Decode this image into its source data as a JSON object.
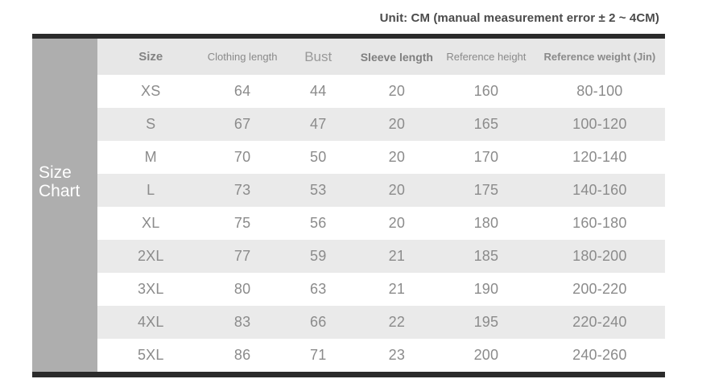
{
  "page": {
    "unit_note": "Unit: CM (manual measurement error ± 2 ~ 4CM)"
  },
  "sidebar": {
    "label_line1": "Size",
    "label_line2": "Chart"
  },
  "chart_data": {
    "type": "table",
    "title": "Unit: CM (manual measurement error ± 2 ~ 4CM)",
    "columns": [
      "Size",
      "Clothing length",
      "Bust",
      "Sleeve length",
      "Reference height",
      "Reference weight (Jin)"
    ],
    "rows": [
      [
        "XS",
        "64",
        "44",
        "20",
        "160",
        "80-100"
      ],
      [
        "S",
        "67",
        "47",
        "20",
        "165",
        "100-120"
      ],
      [
        "M",
        "70",
        "50",
        "20",
        "170",
        "120-140"
      ],
      [
        "L",
        "73",
        "53",
        "20",
        "175",
        "140-160"
      ],
      [
        "XL",
        "75",
        "56",
        "20",
        "180",
        "160-180"
      ],
      [
        "2XL",
        "77",
        "59",
        "21",
        "185",
        "180-200"
      ],
      [
        "3XL",
        "80",
        "63",
        "21",
        "190",
        "200-220"
      ],
      [
        "4XL",
        "83",
        "66",
        "22",
        "195",
        "220-240"
      ],
      [
        "5XL",
        "86",
        "71",
        "23",
        "200",
        "240-260"
      ]
    ]
  },
  "colors": {
    "bar": "#2b2b2b",
    "sidebar_bg": "#aeaeae",
    "header_bg": "#e7e7e7",
    "stripe_bg": "#eaeaea",
    "cell_text": "#8b8b8b",
    "title_text": "#4b4b4b"
  }
}
